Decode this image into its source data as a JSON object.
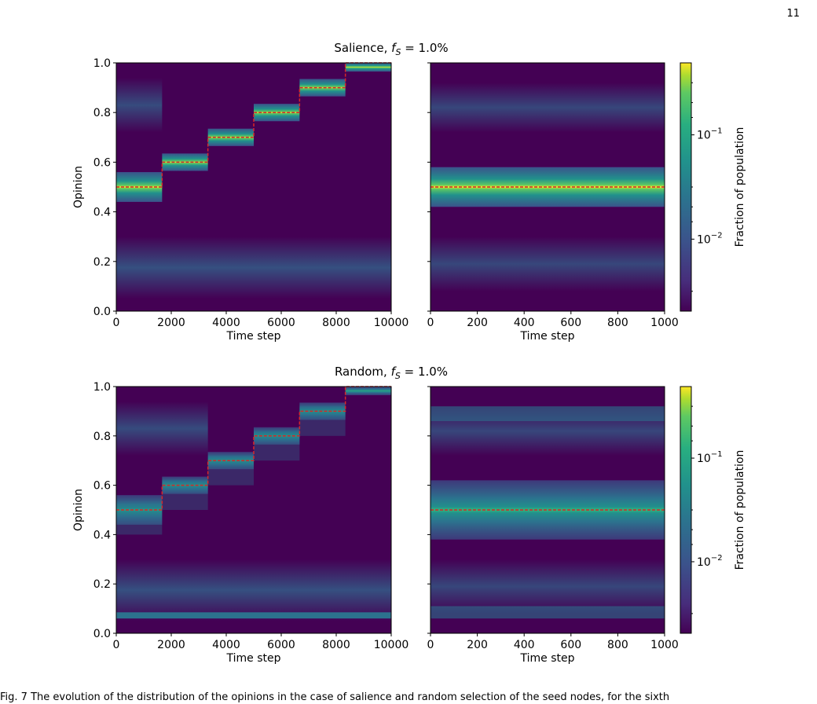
{
  "page": {
    "number": "11",
    "caption_partial": "Fig. 7 The evolution of the distribution of the opinions in the case of salience and random selection of the seed nodes, for the sixth"
  },
  "panel_rows": [
    {
      "title_prefix": "Salience, ",
      "title_math_f": "f",
      "title_math_sub": "S",
      "title_value": " = 1.0%"
    },
    {
      "title_prefix": "Random, ",
      "title_math_f": "f",
      "title_math_sub": "S",
      "title_value": " = 1.0%"
    }
  ],
  "axes": {
    "ylabel": "Opinion",
    "xlabel": "Time step",
    "left_x_ticks": [
      "0",
      "2000",
      "4000",
      "6000",
      "8000",
      "10000"
    ],
    "right_x_ticks": [
      "0",
      "200",
      "400",
      "600",
      "800",
      "1000"
    ],
    "y_ticks": [
      "0.0",
      "0.2",
      "0.4",
      "0.6",
      "0.8",
      "1.0"
    ]
  },
  "colorbar": {
    "label": "Fraction of population",
    "tick_base": "10",
    "ticks": [
      {
        "exp": "−1"
      },
      {
        "exp": "−2"
      }
    ],
    "scale": "log"
  },
  "colors": {
    "background_cmap_low": "#440154",
    "cmap_mid": "#21918c",
    "cmap_high": "#fde725",
    "target_line": "#d62728"
  },
  "chart_data": [
    {
      "type": "heatmap",
      "panel": "salience-long",
      "x_range": [
        0,
        10000
      ],
      "y_range": [
        0,
        1
      ],
      "target_steps": {
        "x": [
          0,
          1667,
          3333,
          5000,
          6667,
          8333,
          10000
        ],
        "y": [
          0.5,
          0.6,
          0.7,
          0.8,
          0.9,
          1.0
        ]
      },
      "xlabel": "Time step",
      "ylabel": "Opinion"
    },
    {
      "type": "heatmap",
      "panel": "salience-short",
      "x_range": [
        0,
        1000
      ],
      "y_range": [
        0,
        1
      ],
      "target_value": 0.5,
      "xlabel": "Time step"
    },
    {
      "type": "heatmap",
      "panel": "random-long",
      "x_range": [
        0,
        10000
      ],
      "y_range": [
        0,
        1
      ],
      "target_steps": {
        "x": [
          0,
          1667,
          3333,
          5000,
          6667,
          8333,
          10000
        ],
        "y": [
          0.5,
          0.6,
          0.7,
          0.8,
          0.9,
          1.0
        ]
      },
      "xlabel": "Time step",
      "ylabel": "Opinion"
    },
    {
      "type": "heatmap",
      "panel": "random-short",
      "x_range": [
        0,
        1000
      ],
      "y_range": [
        0,
        1
      ],
      "target_value": 0.5,
      "xlabel": "Time step"
    }
  ]
}
